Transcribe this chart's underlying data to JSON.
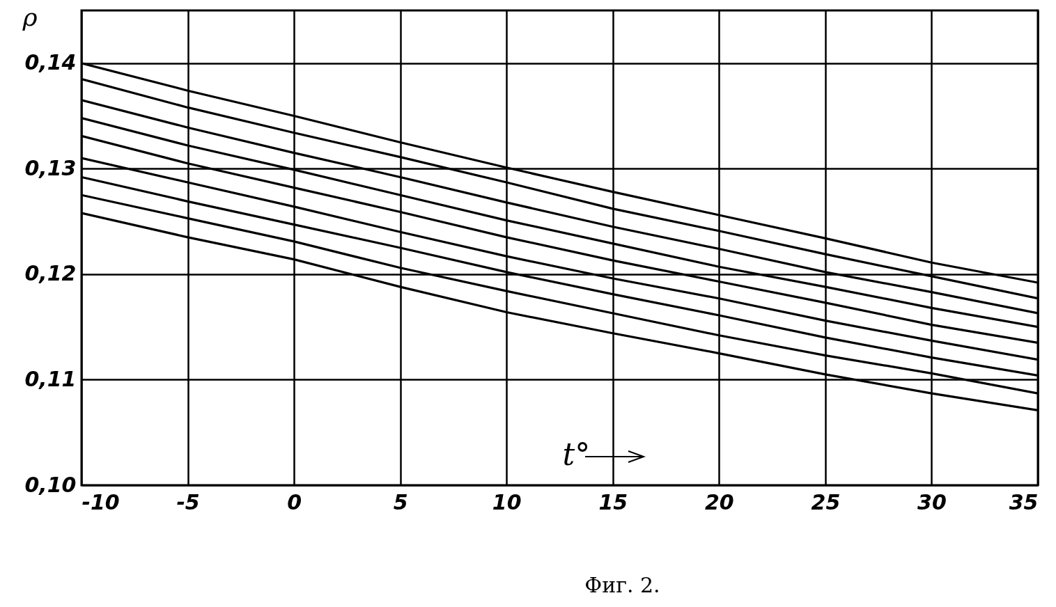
{
  "chart_data": {
    "type": "line",
    "title": "Фиг. 2.",
    "xlabel": "t°",
    "ylabel": "ρ",
    "x": [
      -10,
      -5,
      0,
      5,
      10,
      15,
      20,
      25,
      30,
      35
    ],
    "series": [
      {
        "color": "#000000",
        "values": [
          0.14,
          0.1374,
          0.135,
          0.1325,
          0.1301,
          0.1278,
          0.1256,
          0.1234,
          0.1211,
          0.1192
        ]
      },
      {
        "color": "#000000",
        "values": [
          0.1385,
          0.1358,
          0.1334,
          0.1311,
          0.1287,
          0.1262,
          0.1241,
          0.1219,
          0.1198,
          0.1177
        ]
      },
      {
        "color": "#000000",
        "values": [
          0.1365,
          0.1339,
          0.1315,
          0.1292,
          0.1268,
          0.1245,
          0.1224,
          0.1202,
          0.1183,
          0.1163
        ]
      },
      {
        "color": "#000000",
        "values": [
          0.1348,
          0.1322,
          0.1299,
          0.1275,
          0.1251,
          0.1229,
          0.1207,
          0.1188,
          0.1168,
          0.115
        ]
      },
      {
        "color": "#000000",
        "values": [
          0.1331,
          0.1305,
          0.1282,
          0.1259,
          0.1235,
          0.1213,
          0.1193,
          0.1173,
          0.1152,
          0.1135
        ]
      },
      {
        "color": "#000000",
        "values": [
          0.131,
          0.1287,
          0.1264,
          0.124,
          0.1217,
          0.1196,
          0.1177,
          0.1156,
          0.1137,
          0.1119
        ]
      },
      {
        "color": "#000000",
        "values": [
          0.1292,
          0.1269,
          0.1247,
          0.1225,
          0.1202,
          0.1181,
          0.1161,
          0.114,
          0.1121,
          0.1104
        ]
      },
      {
        "color": "#000000",
        "values": [
          0.1275,
          0.1253,
          0.1231,
          0.1206,
          0.1184,
          0.1163,
          0.1142,
          0.1123,
          0.1106,
          0.1087
        ]
      },
      {
        "color": "#000000",
        "values": [
          0.1258,
          0.1235,
          0.1214,
          0.1188,
          0.1164,
          0.1144,
          0.1125,
          0.1105,
          0.1087,
          0.1071
        ]
      }
    ],
    "xlim": [
      -10,
      35
    ],
    "xticks": [
      -10,
      -5,
      0,
      5,
      10,
      15,
      20,
      25,
      30,
      35
    ],
    "ylim": [
      0.1,
      0.145
    ],
    "yticks": [
      {
        "value": 0.1,
        "label": "0,10"
      },
      {
        "value": 0.11,
        "label": "0,11"
      },
      {
        "value": 0.12,
        "label": "0,12"
      },
      {
        "value": 0.13,
        "label": "0,13"
      },
      {
        "value": 0.14,
        "label": "0,14"
      }
    ],
    "grid": true,
    "marker": "none",
    "line_style": "solid"
  }
}
